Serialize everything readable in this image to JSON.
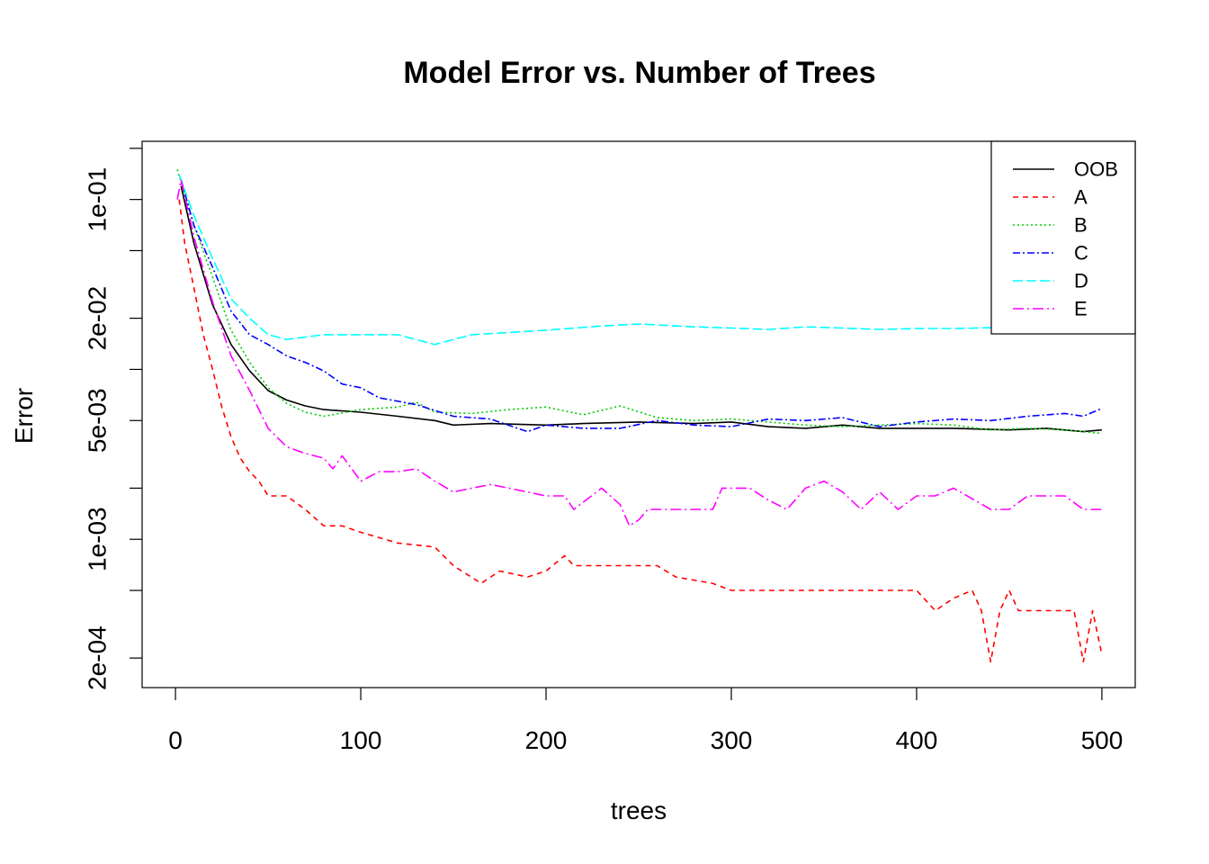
{
  "chart_data": {
    "type": "line",
    "title": "Model Error vs. Number of Trees",
    "xlabel": "trees",
    "ylabel": "Error",
    "xlim": [
      -18,
      518
    ],
    "ylim": [
      0.000134,
      0.22
    ],
    "log_y": true,
    "grid": false,
    "legend_position": "top-right",
    "x_ticks": [
      0,
      100,
      200,
      300,
      400,
      500
    ],
    "x_tick_labels": [
      "0",
      "100",
      "200",
      "300",
      "400",
      "500"
    ],
    "y_ticks": [
      0.0002,
      0.0005,
      0.001,
      0.002,
      0.005,
      0.01,
      0.02,
      0.05,
      0.1,
      0.2
    ],
    "y_tick_labels": [
      "2e-04",
      "",
      "1e-03",
      "",
      "5e-03",
      "",
      "2e-02",
      "",
      "1e-01",
      ""
    ],
    "series": [
      {
        "name": "OOB",
        "color": "#000000",
        "dash": "",
        "points": [
          [
            3,
            0.12
          ],
          [
            10,
            0.055
          ],
          [
            20,
            0.024
          ],
          [
            30,
            0.014
          ],
          [
            40,
            0.0098
          ],
          [
            50,
            0.0075
          ],
          [
            60,
            0.0066
          ],
          [
            70,
            0.0061
          ],
          [
            80,
            0.0058
          ],
          [
            100,
            0.0056
          ],
          [
            120,
            0.0053
          ],
          [
            140,
            0.005
          ],
          [
            150,
            0.0047
          ],
          [
            170,
            0.0048
          ],
          [
            200,
            0.0047
          ],
          [
            220,
            0.0048
          ],
          [
            250,
            0.0049
          ],
          [
            280,
            0.0048
          ],
          [
            300,
            0.0049
          ],
          [
            320,
            0.0046
          ],
          [
            340,
            0.0045
          ],
          [
            360,
            0.0047
          ],
          [
            380,
            0.0045
          ],
          [
            400,
            0.0045
          ],
          [
            420,
            0.0045
          ],
          [
            450,
            0.0044
          ],
          [
            470,
            0.0045
          ],
          [
            490,
            0.0043
          ],
          [
            500,
            0.0044
          ]
        ]
      },
      {
        "name": "A",
        "color": "#ff0000",
        "dash": "6,5",
        "points": [
          [
            2,
            0.1
          ],
          [
            5,
            0.055
          ],
          [
            10,
            0.03
          ],
          [
            15,
            0.016
          ],
          [
            20,
            0.01
          ],
          [
            25,
            0.006
          ],
          [
            30,
            0.004
          ],
          [
            35,
            0.003
          ],
          [
            40,
            0.0025
          ],
          [
            45,
            0.0022
          ],
          [
            50,
            0.0018
          ],
          [
            60,
            0.0018
          ],
          [
            70,
            0.0015
          ],
          [
            80,
            0.0012
          ],
          [
            90,
            0.0012
          ],
          [
            100,
            0.0011
          ],
          [
            120,
            0.00095
          ],
          [
            140,
            0.0009
          ],
          [
            150,
            0.0007
          ],
          [
            165,
            0.00055
          ],
          [
            175,
            0.00065
          ],
          [
            190,
            0.0006
          ],
          [
            200,
            0.00065
          ],
          [
            210,
            0.0008
          ],
          [
            215,
            0.0007
          ],
          [
            260,
            0.0007
          ],
          [
            270,
            0.0006
          ],
          [
            290,
            0.00055
          ],
          [
            300,
            0.0005
          ],
          [
            320,
            0.0005
          ],
          [
            400,
            0.0005
          ],
          [
            410,
            0.00038
          ],
          [
            420,
            0.00045
          ],
          [
            430,
            0.0005
          ],
          [
            435,
            0.00038
          ],
          [
            440,
            0.00019
          ],
          [
            445,
            0.00038
          ],
          [
            450,
            0.0005
          ],
          [
            455,
            0.00038
          ],
          [
            485,
            0.00038
          ],
          [
            490,
            0.00019
          ],
          [
            495,
            0.00038
          ],
          [
            500,
            0.00021
          ]
        ]
      },
      {
        "name": "B",
        "color": "#00cd00",
        "dash": "2,3",
        "points": [
          [
            1,
            0.15
          ],
          [
            10,
            0.07
          ],
          [
            20,
            0.035
          ],
          [
            30,
            0.017
          ],
          [
            40,
            0.011
          ],
          [
            50,
            0.0078
          ],
          [
            60,
            0.0063
          ],
          [
            70,
            0.0056
          ],
          [
            80,
            0.0053
          ],
          [
            100,
            0.0058
          ],
          [
            120,
            0.006
          ],
          [
            130,
            0.0064
          ],
          [
            140,
            0.0056
          ],
          [
            160,
            0.0055
          ],
          [
            180,
            0.0058
          ],
          [
            200,
            0.006
          ],
          [
            220,
            0.0054
          ],
          [
            240,
            0.0061
          ],
          [
            260,
            0.0052
          ],
          [
            280,
            0.005
          ],
          [
            300,
            0.0051
          ],
          [
            320,
            0.0049
          ],
          [
            340,
            0.0047
          ],
          [
            360,
            0.0046
          ],
          [
            380,
            0.0047
          ],
          [
            400,
            0.0048
          ],
          [
            420,
            0.0047
          ],
          [
            440,
            0.0044
          ],
          [
            460,
            0.0045
          ],
          [
            480,
            0.0044
          ],
          [
            500,
            0.0042
          ]
        ]
      },
      {
        "name": "C",
        "color": "#0000ff",
        "dash": "8,3,2,3",
        "points": [
          [
            3,
            0.13
          ],
          [
            10,
            0.07
          ],
          [
            20,
            0.04
          ],
          [
            30,
            0.022
          ],
          [
            40,
            0.016
          ],
          [
            50,
            0.014
          ],
          [
            60,
            0.012
          ],
          [
            70,
            0.011
          ],
          [
            80,
            0.0098
          ],
          [
            90,
            0.0082
          ],
          [
            100,
            0.0078
          ],
          [
            110,
            0.0068
          ],
          [
            130,
            0.0062
          ],
          [
            150,
            0.0053
          ],
          [
            170,
            0.0051
          ],
          [
            190,
            0.0043
          ],
          [
            200,
            0.0047
          ],
          [
            220,
            0.0045
          ],
          [
            240,
            0.0045
          ],
          [
            260,
            0.005
          ],
          [
            280,
            0.0047
          ],
          [
            300,
            0.0046
          ],
          [
            320,
            0.0051
          ],
          [
            340,
            0.005
          ],
          [
            360,
            0.0052
          ],
          [
            380,
            0.0046
          ],
          [
            400,
            0.0049
          ],
          [
            420,
            0.0051
          ],
          [
            440,
            0.005
          ],
          [
            460,
            0.0053
          ],
          [
            480,
            0.0055
          ],
          [
            490,
            0.0053
          ],
          [
            500,
            0.0059
          ]
        ]
      },
      {
        "name": "D",
        "color": "#00ffff",
        "dash": "11,4",
        "points": [
          [
            2,
            0.14
          ],
          [
            10,
            0.08
          ],
          [
            20,
            0.045
          ],
          [
            30,
            0.026
          ],
          [
            40,
            0.02
          ],
          [
            50,
            0.016
          ],
          [
            60,
            0.015
          ],
          [
            80,
            0.016
          ],
          [
            100,
            0.016
          ],
          [
            120,
            0.016
          ],
          [
            140,
            0.014
          ],
          [
            150,
            0.015
          ],
          [
            160,
            0.016
          ],
          [
            200,
            0.017
          ],
          [
            230,
            0.018
          ],
          [
            250,
            0.0185
          ],
          [
            280,
            0.0178
          ],
          [
            300,
            0.0175
          ],
          [
            320,
            0.0172
          ],
          [
            340,
            0.0178
          ],
          [
            360,
            0.0175
          ],
          [
            380,
            0.0172
          ],
          [
            400,
            0.0174
          ],
          [
            420,
            0.0174
          ],
          [
            440,
            0.0176
          ],
          [
            460,
            0.0178
          ],
          [
            480,
            0.0177
          ],
          [
            500,
            0.0176
          ]
        ]
      },
      {
        "name": "E",
        "color": "#ff00ff",
        "dash": "12,4,2,4",
        "points": [
          [
            1,
            0.1
          ],
          [
            3,
            0.13
          ],
          [
            10,
            0.06
          ],
          [
            20,
            0.025
          ],
          [
            30,
            0.012
          ],
          [
            40,
            0.0075
          ],
          [
            50,
            0.0045
          ],
          [
            60,
            0.0035
          ],
          [
            70,
            0.0032
          ],
          [
            80,
            0.003
          ],
          [
            85,
            0.0026
          ],
          [
            90,
            0.0031
          ],
          [
            100,
            0.0022
          ],
          [
            110,
            0.0025
          ],
          [
            120,
            0.0025
          ],
          [
            130,
            0.0026
          ],
          [
            140,
            0.0022
          ],
          [
            150,
            0.0019
          ],
          [
            160,
            0.002
          ],
          [
            170,
            0.0021
          ],
          [
            180,
            0.002
          ],
          [
            200,
            0.0018
          ],
          [
            210,
            0.0018
          ],
          [
            215,
            0.0015
          ],
          [
            230,
            0.002
          ],
          [
            240,
            0.0016
          ],
          [
            245,
            0.0012
          ],
          [
            250,
            0.0013
          ],
          [
            255,
            0.0015
          ],
          [
            290,
            0.0015
          ],
          [
            295,
            0.002
          ],
          [
            310,
            0.002
          ],
          [
            320,
            0.0017
          ],
          [
            330,
            0.0015
          ],
          [
            340,
            0.002
          ],
          [
            350,
            0.0022
          ],
          [
            360,
            0.0019
          ],
          [
            370,
            0.0015
          ],
          [
            380,
            0.0019
          ],
          [
            390,
            0.0015
          ],
          [
            400,
            0.0018
          ],
          [
            410,
            0.0018
          ],
          [
            420,
            0.002
          ],
          [
            440,
            0.0015
          ],
          [
            450,
            0.0015
          ],
          [
            460,
            0.0018
          ],
          [
            480,
            0.0018
          ],
          [
            490,
            0.0015
          ],
          [
            500,
            0.0015
          ]
        ]
      }
    ]
  }
}
